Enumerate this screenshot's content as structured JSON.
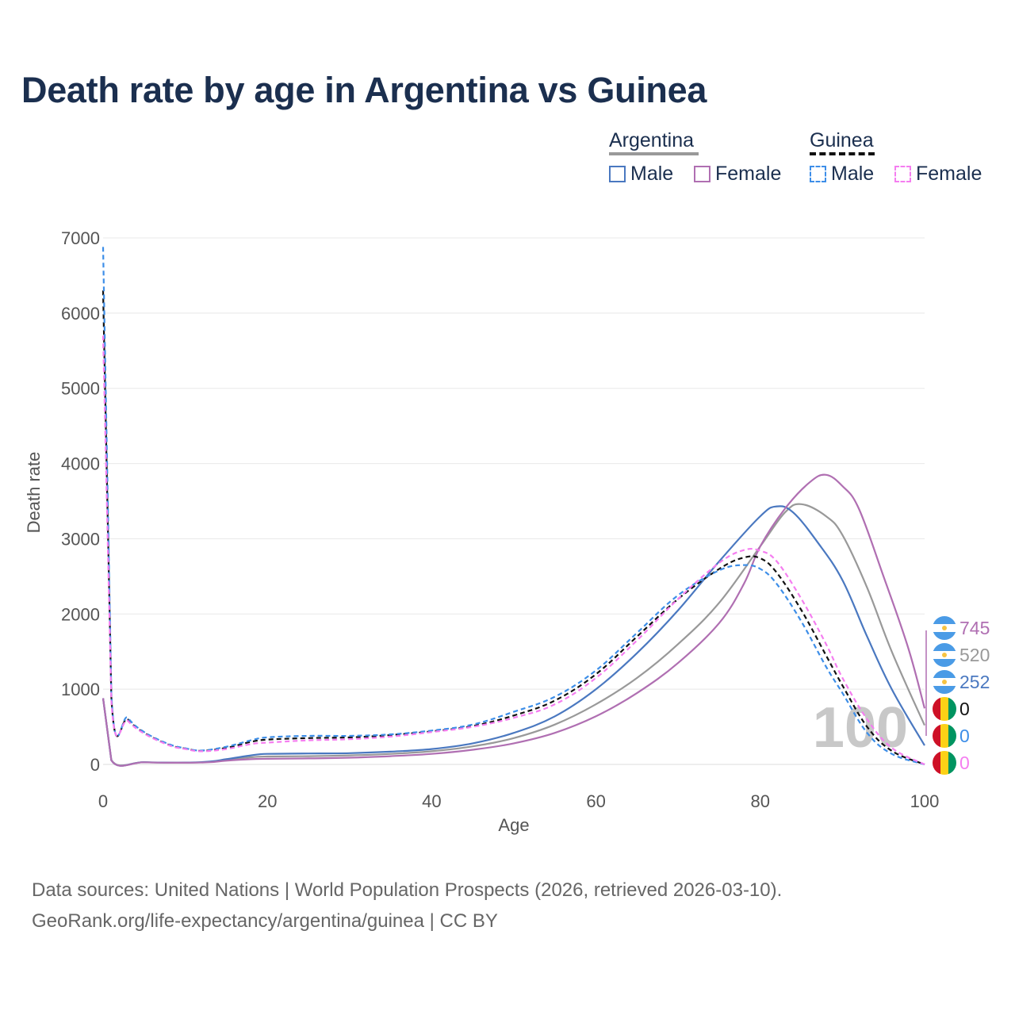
{
  "title": "Death rate by age in Argentina vs Guinea",
  "legend": {
    "groups": [
      {
        "name": "Argentina",
        "line_color": "#999999",
        "line_style": "solid",
        "items": [
          {
            "label": "Male",
            "color": "#4a78c0",
            "style": "solid"
          },
          {
            "label": "Female",
            "color": "#b06fb2",
            "style": "solid"
          }
        ]
      },
      {
        "name": "Guinea",
        "line_color": "#111111",
        "line_style": "dashed",
        "items": [
          {
            "label": "Male",
            "color": "#3d8ee8",
            "style": "dashed"
          },
          {
            "label": "Female",
            "color": "#f57ef0",
            "style": "dashed"
          }
        ]
      }
    ]
  },
  "watermark": "100",
  "footer": {
    "line1": "Data sources: United Nations | World Population Prospects (2026, retrieved 2026-03-10).",
    "line2": "GeoRank.org/life-expectancy/argentina/guinea | CC BY"
  },
  "end_labels": [
    {
      "text": "745",
      "color": "#b06fb2",
      "flag": "argentina"
    },
    {
      "text": "520",
      "color": "#999999",
      "flag": "argentina"
    },
    {
      "text": "252",
      "color": "#4a78c0",
      "flag": "argentina"
    },
    {
      "text": "0",
      "color": "#111111",
      "flag": "guinea"
    },
    {
      "text": "0",
      "color": "#3d8ee8",
      "flag": "guinea"
    },
    {
      "text": "0",
      "color": "#f57ef0",
      "flag": "guinea"
    }
  ],
  "chart_data": {
    "type": "line",
    "title": "Death rate by age in Argentina vs Guinea",
    "xlabel": "Age",
    "ylabel": "Death rate",
    "xlim": [
      0,
      100
    ],
    "ylim": [
      0,
      7000
    ],
    "xticks": [
      0,
      20,
      40,
      60,
      80,
      100
    ],
    "yticks": [
      0,
      1000,
      2000,
      3000,
      4000,
      5000,
      6000,
      7000
    ],
    "grid": true,
    "series": [
      {
        "name": "Argentina Total",
        "color": "#999999",
        "dash": "",
        "points": [
          [
            0,
            880
          ],
          [
            1,
            60
          ],
          [
            5,
            30
          ],
          [
            10,
            22
          ],
          [
            13,
            35
          ],
          [
            15,
            60
          ],
          [
            18,
            95
          ],
          [
            20,
            105
          ],
          [
            25,
            110
          ],
          [
            30,
            120
          ],
          [
            35,
            140
          ],
          [
            40,
            175
          ],
          [
            45,
            240
          ],
          [
            50,
            350
          ],
          [
            55,
            530
          ],
          [
            60,
            800
          ],
          [
            65,
            1150
          ],
          [
            70,
            1600
          ],
          [
            75,
            2150
          ],
          [
            80,
            2900
          ],
          [
            83,
            3350
          ],
          [
            85,
            3460
          ],
          [
            88,
            3300
          ],
          [
            90,
            3050
          ],
          [
            93,
            2350
          ],
          [
            96,
            1500
          ],
          [
            100,
            520
          ]
        ]
      },
      {
        "name": "Argentina Male",
        "color": "#4a78c0",
        "dash": "",
        "points": [
          [
            0,
            880
          ],
          [
            1,
            55
          ],
          [
            5,
            30
          ],
          [
            10,
            25
          ],
          [
            13,
            38
          ],
          [
            15,
            70
          ],
          [
            18,
            120
          ],
          [
            20,
            140
          ],
          [
            25,
            145
          ],
          [
            30,
            150
          ],
          [
            35,
            170
          ],
          [
            40,
            205
          ],
          [
            45,
            280
          ],
          [
            50,
            420
          ],
          [
            55,
            640
          ],
          [
            60,
            1000
          ],
          [
            65,
            1480
          ],
          [
            70,
            2050
          ],
          [
            75,
            2700
          ],
          [
            80,
            3300
          ],
          [
            82,
            3430
          ],
          [
            84,
            3350
          ],
          [
            87,
            2950
          ],
          [
            90,
            2450
          ],
          [
            93,
            1700
          ],
          [
            96,
            1000
          ],
          [
            100,
            252
          ]
        ]
      },
      {
        "name": "Argentina Female",
        "color": "#b06fb2",
        "dash": "",
        "points": [
          [
            0,
            880
          ],
          [
            1,
            55
          ],
          [
            5,
            28
          ],
          [
            10,
            22
          ],
          [
            13,
            30
          ],
          [
            15,
            50
          ],
          [
            18,
            70
          ],
          [
            20,
            75
          ],
          [
            25,
            80
          ],
          [
            30,
            90
          ],
          [
            35,
            110
          ],
          [
            40,
            140
          ],
          [
            45,
            195
          ],
          [
            50,
            280
          ],
          [
            55,
            420
          ],
          [
            60,
            640
          ],
          [
            65,
            950
          ],
          [
            70,
            1350
          ],
          [
            75,
            1880
          ],
          [
            78,
            2400
          ],
          [
            80,
            2900
          ],
          [
            83,
            3400
          ],
          [
            86,
            3750
          ],
          [
            88,
            3850
          ],
          [
            90,
            3700
          ],
          [
            92,
            3400
          ],
          [
            95,
            2500
          ],
          [
            98,
            1550
          ],
          [
            100,
            745
          ]
        ]
      },
      {
        "name": "Guinea Total",
        "color": "#111111",
        "dash": "6,4",
        "points": [
          [
            0,
            6300
          ],
          [
            1,
            900
          ],
          [
            3,
            600
          ],
          [
            5,
            420
          ],
          [
            8,
            260
          ],
          [
            10,
            210
          ],
          [
            12,
            180
          ],
          [
            15,
            220
          ],
          [
            18,
            300
          ],
          [
            20,
            330
          ],
          [
            25,
            350
          ],
          [
            30,
            360
          ],
          [
            35,
            390
          ],
          [
            40,
            440
          ],
          [
            45,
            510
          ],
          [
            50,
            650
          ],
          [
            55,
            850
          ],
          [
            60,
            1200
          ],
          [
            65,
            1700
          ],
          [
            70,
            2200
          ],
          [
            75,
            2600
          ],
          [
            78,
            2750
          ],
          [
            80,
            2740
          ],
          [
            82,
            2550
          ],
          [
            85,
            2050
          ],
          [
            88,
            1450
          ],
          [
            90,
            1050
          ],
          [
            93,
            500
          ],
          [
            96,
            180
          ],
          [
            100,
            0
          ]
        ]
      },
      {
        "name": "Guinea Male",
        "color": "#3d8ee8",
        "dash": "6,4",
        "points": [
          [
            0,
            6880
          ],
          [
            1,
            950
          ],
          [
            3,
            620
          ],
          [
            5,
            430
          ],
          [
            8,
            270
          ],
          [
            10,
            215
          ],
          [
            12,
            185
          ],
          [
            15,
            235
          ],
          [
            18,
            320
          ],
          [
            20,
            360
          ],
          [
            25,
            380
          ],
          [
            30,
            380
          ],
          [
            35,
            400
          ],
          [
            40,
            450
          ],
          [
            45,
            530
          ],
          [
            50,
            700
          ],
          [
            55,
            900
          ],
          [
            60,
            1250
          ],
          [
            65,
            1750
          ],
          [
            70,
            2250
          ],
          [
            75,
            2580
          ],
          [
            78,
            2650
          ],
          [
            80,
            2600
          ],
          [
            82,
            2400
          ],
          [
            85,
            1900
          ],
          [
            88,
            1300
          ],
          [
            90,
            950
          ],
          [
            93,
            420
          ],
          [
            96,
            140
          ],
          [
            100,
            0
          ]
        ]
      },
      {
        "name": "Guinea Female",
        "color": "#f57ef0",
        "dash": "6,4",
        "points": [
          [
            0,
            5700
          ],
          [
            1,
            850
          ],
          [
            3,
            580
          ],
          [
            5,
            410
          ],
          [
            8,
            255
          ],
          [
            10,
            205
          ],
          [
            12,
            175
          ],
          [
            15,
            205
          ],
          [
            18,
            270
          ],
          [
            20,
            290
          ],
          [
            25,
            320
          ],
          [
            30,
            335
          ],
          [
            35,
            370
          ],
          [
            40,
            430
          ],
          [
            45,
            500
          ],
          [
            50,
            620
          ],
          [
            55,
            800
          ],
          [
            60,
            1150
          ],
          [
            65,
            1650
          ],
          [
            70,
            2200
          ],
          [
            75,
            2680
          ],
          [
            78,
            2850
          ],
          [
            80,
            2840
          ],
          [
            82,
            2700
          ],
          [
            85,
            2200
          ],
          [
            88,
            1600
          ],
          [
            90,
            1150
          ],
          [
            93,
            600
          ],
          [
            96,
            220
          ],
          [
            100,
            0
          ]
        ]
      }
    ]
  }
}
